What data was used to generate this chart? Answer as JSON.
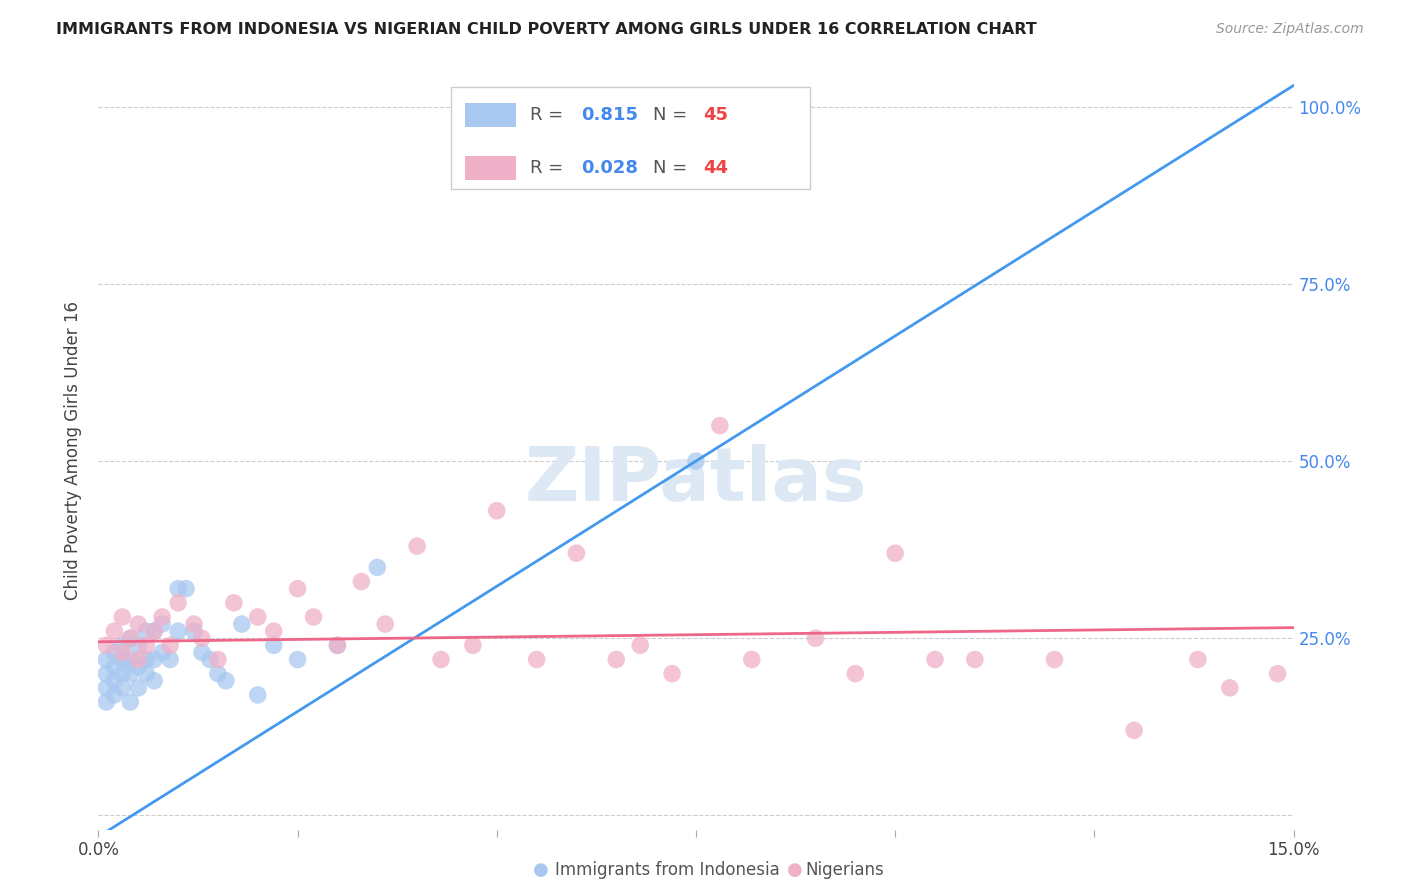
{
  "title": "IMMIGRANTS FROM INDONESIA VS NIGERIAN CHILD POVERTY AMONG GIRLS UNDER 16 CORRELATION CHART",
  "source": "Source: ZipAtlas.com",
  "ylabel": "Child Poverty Among Girls Under 16",
  "xlim": [
    0.0,
    0.15
  ],
  "ylim": [
    -0.02,
    1.05
  ],
  "xticks": [
    0.0,
    0.025,
    0.05,
    0.075,
    0.1,
    0.125,
    0.15
  ],
  "xticklabels": [
    "0.0%",
    "",
    "",
    "",
    "",
    "",
    "15.0%"
  ],
  "yticks": [
    0.0,
    0.25,
    0.5,
    0.75,
    1.0
  ],
  "yticklabels": [
    "",
    "25.0%",
    "50.0%",
    "75.0%",
    "100.0%"
  ],
  "grid_color": "#cccccc",
  "bg_color": "#ffffff",
  "series1_color": "#a8c8f0",
  "series2_color": "#f0b0c8",
  "series1_label": "Immigrants from Indonesia",
  "series2_label": "Nigerians",
  "series1_R": "0.815",
  "series1_N": "45",
  "series2_R": "0.028",
  "series2_N": "44",
  "legend_R_color": "#4488ee",
  "legend_N_color": "#ee4444",
  "trendline1_color": "#4499ee",
  "trendline2_color": "#ee6688",
  "series1_x": [
    0.001,
    0.001,
    0.001,
    0.001,
    0.002,
    0.002,
    0.002,
    0.002,
    0.003,
    0.003,
    0.003,
    0.003,
    0.004,
    0.004,
    0.004,
    0.004,
    0.005,
    0.005,
    0.005,
    0.006,
    0.006,
    0.006,
    0.007,
    0.007,
    0.007,
    0.008,
    0.008,
    0.009,
    0.01,
    0.01,
    0.011,
    0.012,
    0.013,
    0.014,
    0.015,
    0.016,
    0.018,
    0.02,
    0.022,
    0.025,
    0.03,
    0.035,
    0.065,
    0.072,
    0.075
  ],
  "series1_y": [
    0.16,
    0.18,
    0.2,
    0.22,
    0.17,
    0.19,
    0.21,
    0.23,
    0.18,
    0.2,
    0.22,
    0.24,
    0.16,
    0.2,
    0.22,
    0.25,
    0.18,
    0.21,
    0.24,
    0.2,
    0.22,
    0.26,
    0.19,
    0.22,
    0.26,
    0.23,
    0.27,
    0.22,
    0.26,
    0.32,
    0.32,
    0.26,
    0.23,
    0.22,
    0.2,
    0.19,
    0.27,
    0.17,
    0.24,
    0.22,
    0.24,
    0.35,
    0.99,
    0.99,
    0.5
  ],
  "series2_x": [
    0.001,
    0.002,
    0.003,
    0.003,
    0.004,
    0.005,
    0.005,
    0.006,
    0.007,
    0.008,
    0.009,
    0.01,
    0.012,
    0.013,
    0.015,
    0.017,
    0.02,
    0.022,
    0.025,
    0.027,
    0.03,
    0.033,
    0.036,
    0.04,
    0.043,
    0.047,
    0.05,
    0.055,
    0.06,
    0.065,
    0.068,
    0.072,
    0.078,
    0.082,
    0.09,
    0.095,
    0.1,
    0.105,
    0.11,
    0.12,
    0.13,
    0.138,
    0.142,
    0.148
  ],
  "series2_y": [
    0.24,
    0.26,
    0.23,
    0.28,
    0.25,
    0.22,
    0.27,
    0.24,
    0.26,
    0.28,
    0.24,
    0.3,
    0.27,
    0.25,
    0.22,
    0.3,
    0.28,
    0.26,
    0.32,
    0.28,
    0.24,
    0.33,
    0.27,
    0.38,
    0.22,
    0.24,
    0.43,
    0.22,
    0.37,
    0.22,
    0.24,
    0.2,
    0.55,
    0.22,
    0.25,
    0.2,
    0.37,
    0.22,
    0.22,
    0.22,
    0.12,
    0.22,
    0.18,
    0.2
  ],
  "trendline1_x0": 0.0,
  "trendline1_y0": -0.03,
  "trendline1_x1": 0.15,
  "trendline1_y1": 1.03,
  "trendline2_x0": 0.0,
  "trendline2_y0": 0.245,
  "trendline2_x1": 0.15,
  "trendline2_y1": 0.265
}
